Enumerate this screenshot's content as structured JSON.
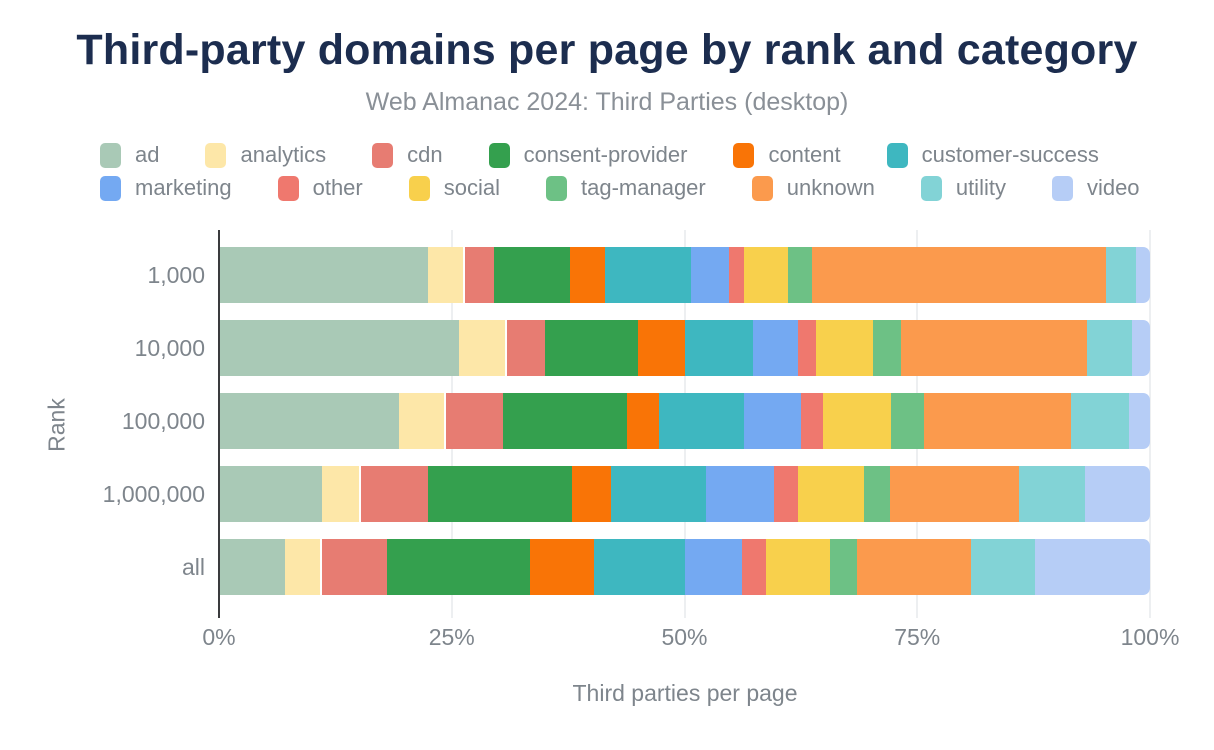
{
  "chart_data": {
    "type": "bar",
    "orientation": "horizontal",
    "stacked": true,
    "title": "Third-party domains per page by rank and category",
    "subtitle": "Web Almanac 2024: Third Parties (desktop)",
    "xlabel": "Third parties per page",
    "ylabel": "Rank",
    "xlim": [
      0,
      100
    ],
    "unit": "percent",
    "grid": true,
    "legend_position": "top",
    "xtick_labels": [
      "0%",
      "25%",
      "50%",
      "75%",
      "100%"
    ],
    "categories": [
      "1,000",
      "10,000",
      "100,000",
      "1,000,000",
      "all"
    ],
    "series": [
      {
        "name": "ad",
        "color": "#a9c9b6",
        "values": [
          22.4,
          25.7,
          19.2,
          11.0,
          7.0
        ]
      },
      {
        "name": "analytics",
        "color": "#fde7a8",
        "values": [
          3.9,
          5.2,
          5.1,
          4.2,
          4.0
        ]
      },
      {
        "name": "cdn",
        "color": "#e77c72",
        "values": [
          3.2,
          4.1,
          6.1,
          7.2,
          7.0
        ]
      },
      {
        "name": "consent-provider",
        "color": "#34a04e",
        "values": [
          8.1,
          9.9,
          13.4,
          15.4,
          15.3
        ]
      },
      {
        "name": "content",
        "color": "#f97406",
        "values": [
          3.8,
          5.1,
          3.4,
          4.2,
          6.9
        ]
      },
      {
        "name": "customer-success",
        "color": "#3eb7c0",
        "values": [
          9.3,
          7.3,
          9.2,
          10.3,
          9.8
        ]
      },
      {
        "name": "marketing",
        "color": "#74a9f2",
        "values": [
          4.0,
          4.9,
          6.1,
          7.3,
          6.1
        ]
      },
      {
        "name": "other",
        "color": "#ef786e",
        "values": [
          1.6,
          1.9,
          2.3,
          2.6,
          2.6
        ]
      },
      {
        "name": "social",
        "color": "#f8d04c",
        "values": [
          4.8,
          6.1,
          7.4,
          7.1,
          6.9
        ]
      },
      {
        "name": "tag-manager",
        "color": "#6dc185",
        "values": [
          2.6,
          3.0,
          3.5,
          2.7,
          2.9
        ]
      },
      {
        "name": "unknown",
        "color": "#fb9a4d",
        "values": [
          31.6,
          20.0,
          15.8,
          13.9,
          12.3
        ]
      },
      {
        "name": "utility",
        "color": "#82d3d6",
        "values": [
          3.2,
          4.9,
          6.2,
          7.1,
          6.8
        ]
      },
      {
        "name": "video",
        "color": "#b6cdf6",
        "values": [
          1.5,
          1.9,
          2.3,
          7.0,
          12.4
        ]
      }
    ]
  }
}
